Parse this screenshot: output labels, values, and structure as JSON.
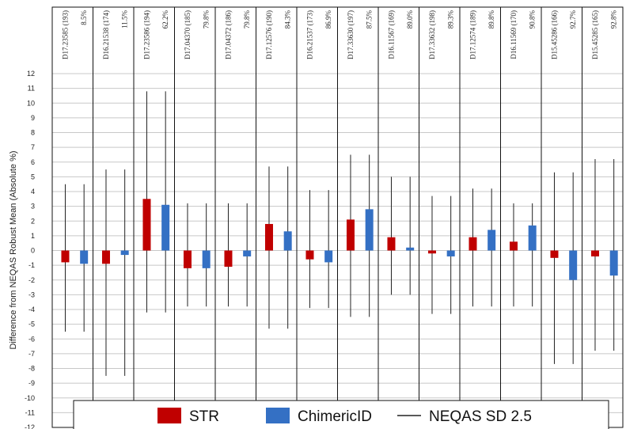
{
  "chart_data": {
    "type": "bar",
    "ylabel": "Difference from NEQAS Robust Mean (Absolute %)",
    "ylim": [
      -12,
      12
    ],
    "ytick_step": 1,
    "grid": true,
    "legend_position": "bottom",
    "samples": [
      {
        "id": "D17.23585 (193)",
        "pct": "8.5%",
        "STR": -0.8,
        "ChimericID": -0.9,
        "STR_range": [
          -5.5,
          4.5
        ],
        "ChimericID_range": [
          -5.5,
          4.5
        ]
      },
      {
        "id": "D16.21538 (174)",
        "pct": "11.5%",
        "STR": -0.9,
        "ChimericID": -0.3,
        "STR_range": [
          -8.5,
          5.5
        ],
        "ChimericID_range": [
          -8.5,
          5.5
        ]
      },
      {
        "id": "D17.23586 (194)",
        "pct": "62.2%",
        "STR": 3.5,
        "ChimericID": 3.1,
        "STR_range": [
          -4.2,
          10.8
        ],
        "ChimericID_range": [
          -4.2,
          10.8
        ]
      },
      {
        "id": "D17.04370 (185)",
        "pct": "79.8%",
        "STR": -1.2,
        "ChimericID": -1.2,
        "STR_range": [
          -3.8,
          3.2
        ],
        "ChimericID_range": [
          -3.8,
          3.2
        ]
      },
      {
        "id": "D17.04372 (186)",
        "pct": "79.8%",
        "STR": -1.1,
        "ChimericID": -0.4,
        "STR_range": [
          -3.8,
          3.2
        ],
        "ChimericID_range": [
          -3.8,
          3.2
        ]
      },
      {
        "id": "D17.12576 (190)",
        "pct": "84.3%",
        "STR": 1.8,
        "ChimericID": 1.3,
        "STR_range": [
          -5.3,
          5.7
        ],
        "ChimericID_range": [
          -5.3,
          5.7
        ]
      },
      {
        "id": "D16.21537 (173)",
        "pct": "86.9%",
        "STR": -0.6,
        "ChimericID": -0.8,
        "STR_range": [
          -3.9,
          4.1
        ],
        "ChimericID_range": [
          -3.9,
          4.1
        ]
      },
      {
        "id": "D17.33630 (197)",
        "pct": "87.5%",
        "STR": 2.1,
        "ChimericID": 2.8,
        "STR_range": [
          -4.5,
          6.5
        ],
        "ChimericID_range": [
          -4.5,
          6.5
        ]
      },
      {
        "id": "D16.11567 (169)",
        "pct": "89.0%",
        "STR": 0.9,
        "ChimericID": 0.2,
        "STR_range": [
          -3.0,
          5.0
        ],
        "ChimericID_range": [
          -3.0,
          5.0
        ]
      },
      {
        "id": "D17.33632 (198)",
        "pct": "89.3%",
        "STR": -0.2,
        "ChimericID": -0.4,
        "STR_range": [
          -4.3,
          3.7
        ],
        "ChimericID_range": [
          -4.3,
          3.7
        ]
      },
      {
        "id": "D17.12574 (189)",
        "pct": "89.8%",
        "STR": 0.9,
        "ChimericID": 1.4,
        "STR_range": [
          -3.8,
          4.2
        ],
        "ChimericID_range": [
          -3.8,
          4.2
        ]
      },
      {
        "id": "D16.11569 (170)",
        "pct": "90.8%",
        "STR": 0.6,
        "ChimericID": 1.7,
        "STR_range": [
          -3.8,
          3.2
        ],
        "ChimericID_range": [
          -3.8,
          3.2
        ]
      },
      {
        "id": "D15.45286 (166)",
        "pct": "92.7%",
        "STR": -0.5,
        "ChimericID": -2.0,
        "STR_range": [
          -7.7,
          5.3
        ],
        "ChimericID_range": [
          -7.7,
          5.3
        ]
      },
      {
        "id": "D15.45285 (165)",
        "pct": "92.8%",
        "STR": -0.4,
        "ChimericID": -1.7,
        "STR_range": [
          -6.8,
          6.2
        ],
        "ChimericID_range": [
          -6.8,
          6.2
        ]
      }
    ],
    "legend": [
      {
        "label": "STR",
        "kind": "box",
        "color": "#c00000"
      },
      {
        "label": "ChimericID",
        "kind": "box",
        "color": "#3470c4"
      },
      {
        "label": "NEQAS SD 2.5",
        "kind": "line",
        "color": "#222222"
      }
    ],
    "colors": {
      "STR": "#c00000",
      "ChimericID": "#3470c4",
      "range": "#222222"
    }
  }
}
